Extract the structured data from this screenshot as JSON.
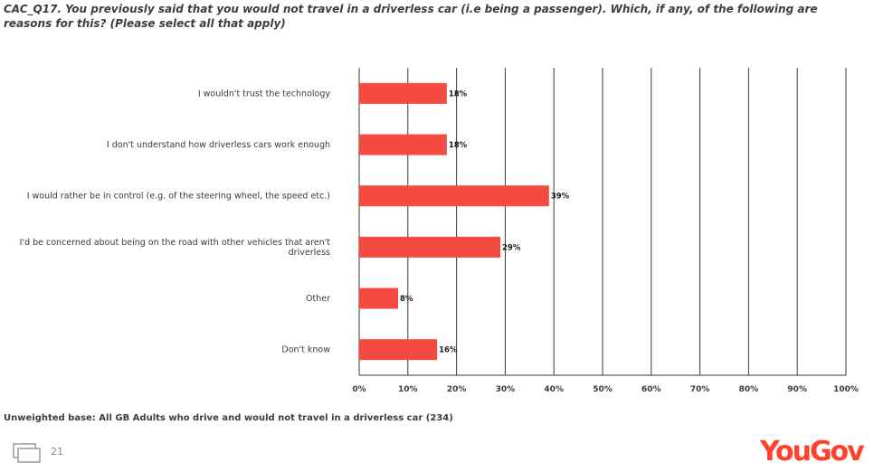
{
  "question": "CAC_Q17. You previously said that you would not travel in a driverless car (i.e being a passenger). Which, if any, of the following are reasons for this? (Please select all that apply)",
  "base_note": "Unweighted base: All GB Adults who drive and would not travel in a driverless car (234)",
  "page_number": "21",
  "logo_text": "YouGov",
  "colors": {
    "bar": "#f44a41",
    "grid": "#3a3a3a",
    "text": "#3a3a3a",
    "brand": "#ff412c"
  },
  "chart_data": {
    "type": "bar",
    "orientation": "horizontal",
    "categories": [
      "I wouldn't trust the technology",
      "I don't understand how driverless cars work enough",
      "I would rather be in control (e.g. of the steering wheel, the speed etc.)",
      "I'd be concerned about being on the road with other vehicles that aren't driverless",
      "Other",
      "Don't know"
    ],
    "values": [
      18,
      18,
      39,
      29,
      8,
      16
    ],
    "data_labels": [
      "18%",
      "18%",
      "39%",
      "29%",
      "8%",
      "16%"
    ],
    "xlim": [
      0,
      100
    ],
    "xticks": [
      "0%",
      "10%",
      "20%",
      "30%",
      "40%",
      "50%",
      "60%",
      "70%",
      "80%",
      "90%",
      "100%"
    ],
    "grid": "vertical",
    "legend": "none"
  }
}
